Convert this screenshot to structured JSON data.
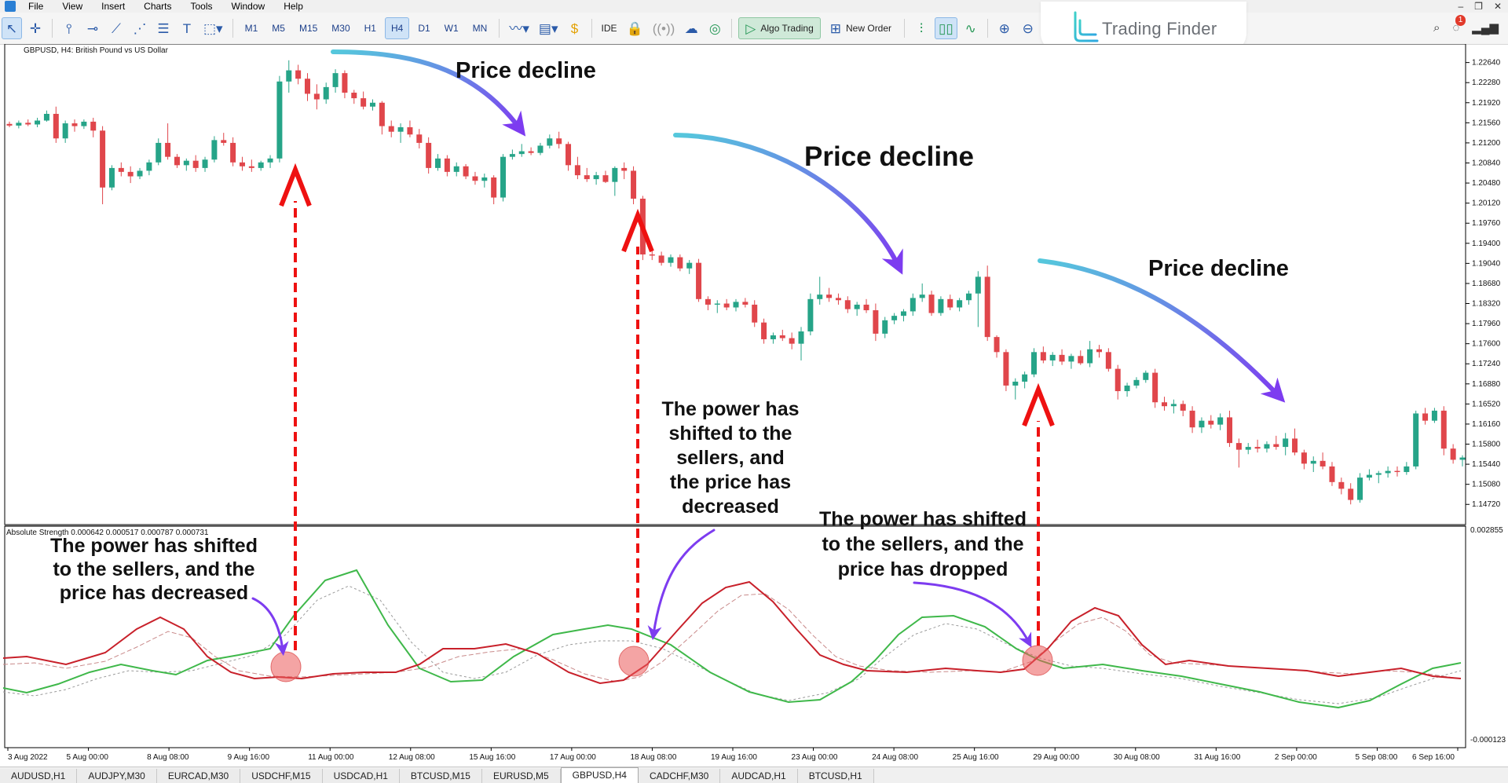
{
  "menu": {
    "items": [
      "File",
      "View",
      "Insert",
      "Charts",
      "Tools",
      "Window",
      "Help"
    ]
  },
  "toolbar": {
    "timeframes": [
      "M1",
      "M5",
      "M15",
      "M30",
      "H1",
      "H4",
      "D1",
      "W1",
      "MN"
    ],
    "active_timeframe": "H4",
    "ide_label": "IDE",
    "algo_trading_label": "Algo Trading",
    "new_order_label": "New Order"
  },
  "logo": {
    "text": "Trading Finder"
  },
  "notifications": {
    "count": "1"
  },
  "chart": {
    "symbol_label": "GBPUSD, H4:  British Pound vs US Dollar",
    "indicator_label": "Absolute Strength 0.000642 0.000517 0.000787 0.000731"
  },
  "annotations": {
    "decline_1": "Price decline",
    "decline_2": "Price decline",
    "decline_3": "Price decline",
    "note_1": [
      "The power has shifted",
      "to the sellers, and the",
      "price has decreased"
    ],
    "note_2": [
      "The power has",
      "shifted to the",
      "sellers, and",
      "the price has",
      "decreased"
    ],
    "note_3": [
      "The power has shifted",
      "to the sellers, and the",
      "price has dropped"
    ]
  },
  "colors": {
    "bull": "#26a488",
    "bear": "#e0464b",
    "strength_bull": "#3fb84a",
    "strength_bear": "#c8202a",
    "arrow_red": "#ee1111",
    "decline_arrow_start": "#55c8dc",
    "decline_arrow_end": "#7d3cf0"
  },
  "tabs": {
    "items": [
      "AUDUSD,H1",
      "AUDJPY,M30",
      "EURCAD,M30",
      "USDCHF,M15",
      "USDCAD,H1",
      "BTCUSD,M15",
      "EURUSD,M5",
      "GBPUSD,H4",
      "CADCHF,M30",
      "AUDCAD,H1",
      "BTCUSD,H1"
    ],
    "active": "GBPUSD,H4"
  },
  "chart_data": {
    "type": "candlestick",
    "price_axis_labels": [
      "1.22640",
      "1.22280",
      "1.21920",
      "1.21560",
      "1.21200",
      "1.20840",
      "1.20480",
      "1.20120",
      "1.19760",
      "1.19400",
      "1.19040",
      "1.18680",
      "1.18320",
      "1.17960",
      "1.17600",
      "1.17240",
      "1.16880",
      "1.16520",
      "1.16160",
      "1.15800",
      "1.15440",
      "1.15080",
      "1.14720"
    ],
    "time_axis_labels": [
      "3 Aug 2022",
      "5 Aug 00:00",
      "8 Aug 08:00",
      "9 Aug 16:00",
      "11 Aug 00:00",
      "12 Aug 08:00",
      "15 Aug 16:00",
      "17 Aug 00:00",
      "18 Aug 08:00",
      "19 Aug 16:00",
      "23 Aug 00:00",
      "24 Aug 08:00",
      "25 Aug 16:00",
      "29 Aug 00:00",
      "30 Aug 08:00",
      "31 Aug 16:00",
      "2 Sep 00:00",
      "5 Sep 08:00",
      "6 Sep 16:00"
    ],
    "indicator_axis_labels": [
      "0.002855",
      "-0.000123"
    ],
    "candles": [
      [
        1.2154,
        1.2158,
        1.2148,
        1.2151
      ],
      [
        1.2151,
        1.216,
        1.2146,
        1.2156
      ],
      [
        1.2156,
        1.2162,
        1.215,
        1.2153
      ],
      [
        1.2153,
        1.2165,
        1.2148,
        1.216
      ],
      [
        1.216,
        1.2178,
        1.2158,
        1.2172
      ],
      [
        1.2172,
        1.2185,
        1.212,
        1.2128
      ],
      [
        1.2128,
        1.216,
        1.212,
        1.2155
      ],
      [
        1.2155,
        1.2162,
        1.214,
        1.215
      ],
      [
        1.215,
        1.2162,
        1.2145,
        1.2158
      ],
      [
        1.2158,
        1.2165,
        1.213,
        1.2142
      ],
      [
        1.2142,
        1.215,
        1.201,
        1.204
      ],
      [
        1.204,
        1.208,
        1.2035,
        1.2075
      ],
      [
        1.2075,
        1.2085,
        1.206,
        1.2068
      ],
      [
        1.2068,
        1.2078,
        1.2048,
        1.206
      ],
      [
        1.206,
        1.2075,
        1.2055,
        1.207
      ],
      [
        1.207,
        1.209,
        1.2062,
        1.2085
      ],
      [
        1.2085,
        1.2128,
        1.208,
        1.212
      ],
      [
        1.212,
        1.2155,
        1.209,
        1.2095
      ],
      [
        1.2095,
        1.21,
        1.2075,
        1.208
      ],
      [
        1.208,
        1.2092,
        1.207,
        1.2088
      ],
      [
        1.2088,
        1.2098,
        1.2068,
        1.2075
      ],
      [
        1.2075,
        1.2095,
        1.2068,
        1.209
      ],
      [
        1.209,
        1.2132,
        1.2085,
        1.2125
      ],
      [
        1.2125,
        1.2138,
        1.2115,
        1.212
      ],
      [
        1.212,
        1.213,
        1.2078,
        1.2085
      ],
      [
        1.2085,
        1.2095,
        1.207,
        1.2078
      ],
      [
        1.2078,
        1.209,
        1.2068,
        1.2075
      ],
      [
        1.2075,
        1.2088,
        1.207,
        1.2085
      ],
      [
        1.2085,
        1.2098,
        1.2075,
        1.2092
      ],
      [
        1.2092,
        1.224,
        1.2085,
        1.223
      ],
      [
        1.223,
        1.2268,
        1.221,
        1.225
      ],
      [
        1.225,
        1.226,
        1.2225,
        1.2235
      ],
      [
        1.2235,
        1.2245,
        1.2195,
        1.2208
      ],
      [
        1.2208,
        1.2225,
        1.218,
        1.2198
      ],
      [
        1.2198,
        1.2228,
        1.219,
        1.222
      ],
      [
        1.222,
        1.2252,
        1.221,
        1.2245
      ],
      [
        1.2245,
        1.225,
        1.22,
        1.221
      ],
      [
        1.221,
        1.2215,
        1.219,
        1.22
      ],
      [
        1.22,
        1.2212,
        1.218,
        1.2185
      ],
      [
        1.2185,
        1.2198,
        1.2178,
        1.2192
      ],
      [
        1.2192,
        1.2195,
        1.2135,
        1.215
      ],
      [
        1.215,
        1.216,
        1.213,
        1.214
      ],
      [
        1.214,
        1.2155,
        1.212,
        1.2148
      ],
      [
        1.2148,
        1.216,
        1.213,
        1.2135
      ],
      [
        1.2135,
        1.2145,
        1.211,
        1.212
      ],
      [
        1.212,
        1.213,
        1.2065,
        1.2075
      ],
      [
        1.2075,
        1.21,
        1.207,
        1.2092
      ],
      [
        1.2092,
        1.2098,
        1.206,
        1.2068
      ],
      [
        1.2068,
        1.2085,
        1.206,
        1.2078
      ],
      [
        1.2078,
        1.2082,
        1.2055,
        1.206
      ],
      [
        1.206,
        1.2068,
        1.2045,
        1.2052
      ],
      [
        1.2052,
        1.2065,
        1.204,
        1.2058
      ],
      [
        1.2058,
        1.2062,
        1.201,
        1.2022
      ],
      [
        1.2022,
        1.21,
        1.2015,
        1.2095
      ],
      [
        1.2095,
        1.2108,
        1.209,
        1.21
      ],
      [
        1.21,
        1.2118,
        1.2095,
        1.2105
      ],
      [
        1.2105,
        1.2112,
        1.2098,
        1.2102
      ],
      [
        1.2102,
        1.212,
        1.2098,
        1.2115
      ],
      [
        1.2115,
        1.2135,
        1.211,
        1.2128
      ],
      [
        1.2128,
        1.214,
        1.211,
        1.2118
      ],
      [
        1.2118,
        1.2122,
        1.207,
        1.208
      ],
      [
        1.208,
        1.2095,
        1.2055,
        1.2062
      ],
      [
        1.2062,
        1.2075,
        1.205,
        1.2055
      ],
      [
        1.2055,
        1.2068,
        1.2045,
        1.2062
      ],
      [
        1.2062,
        1.207,
        1.2048,
        1.205
      ],
      [
        1.205,
        1.2078,
        1.2025,
        1.2075
      ],
      [
        1.2075,
        1.2085,
        1.2055,
        1.207
      ],
      [
        1.207,
        1.2078,
        1.201,
        1.202
      ],
      [
        1.202,
        1.2025,
        1.191,
        1.192
      ],
      [
        1.192,
        1.193,
        1.191,
        1.1918
      ],
      [
        1.1918,
        1.1925,
        1.19,
        1.1905
      ],
      [
        1.1905,
        1.192,
        1.1898,
        1.1915
      ],
      [
        1.1915,
        1.192,
        1.189,
        1.1895
      ],
      [
        1.1895,
        1.191,
        1.1885,
        1.1905
      ],
      [
        1.1905,
        1.1912,
        1.1835,
        1.184
      ],
      [
        1.184,
        1.1845,
        1.182,
        1.183
      ],
      [
        1.183,
        1.1838,
        1.1815,
        1.1832
      ],
      [
        1.1832,
        1.184,
        1.182,
        1.1825
      ],
      [
        1.1825,
        1.184,
        1.1818,
        1.1835
      ],
      [
        1.1835,
        1.1842,
        1.1825,
        1.183
      ],
      [
        1.183,
        1.1838,
        1.179,
        1.1798
      ],
      [
        1.1798,
        1.1805,
        1.176,
        1.1768
      ],
      [
        1.1768,
        1.178,
        1.176,
        1.1775
      ],
      [
        1.1775,
        1.1785,
        1.1765,
        1.177
      ],
      [
        1.177,
        1.178,
        1.175,
        1.176
      ],
      [
        1.176,
        1.179,
        1.173,
        1.1782
      ],
      [
        1.1782,
        1.185,
        1.1775,
        1.184
      ],
      [
        1.184,
        1.188,
        1.183,
        1.1848
      ],
      [
        1.1848,
        1.186,
        1.1835,
        1.1842
      ],
      [
        1.1842,
        1.185,
        1.183,
        1.1838
      ],
      [
        1.1838,
        1.1845,
        1.1815,
        1.1822
      ],
      [
        1.1822,
        1.1835,
        1.181,
        1.183
      ],
      [
        1.183,
        1.184,
        1.1815,
        1.182
      ],
      [
        1.182,
        1.1832,
        1.1765,
        1.1778
      ],
      [
        1.1778,
        1.1808,
        1.177,
        1.1802
      ],
      [
        1.1802,
        1.1815,
        1.1795,
        1.181
      ],
      [
        1.181,
        1.1822,
        1.18,
        1.1818
      ],
      [
        1.1818,
        1.185,
        1.181,
        1.1842
      ],
      [
        1.1842,
        1.1868,
        1.1835,
        1.1848
      ],
      [
        1.1848,
        1.1855,
        1.181,
        1.1815
      ],
      [
        1.1815,
        1.1845,
        1.181,
        1.184
      ],
      [
        1.184,
        1.1848,
        1.182,
        1.1825
      ],
      [
        1.1825,
        1.1842,
        1.1818,
        1.1838
      ],
      [
        1.1838,
        1.1855,
        1.183,
        1.185
      ],
      [
        1.185,
        1.189,
        1.179,
        1.188
      ],
      [
        1.188,
        1.19,
        1.1765,
        1.1772
      ],
      [
        1.1772,
        1.1775,
        1.1735,
        1.1745
      ],
      [
        1.1745,
        1.175,
        1.1675,
        1.1685
      ],
      [
        1.1685,
        1.1698,
        1.166,
        1.1692
      ],
      [
        1.1692,
        1.171,
        1.168,
        1.1705
      ],
      [
        1.1705,
        1.1752,
        1.17,
        1.1745
      ],
      [
        1.1745,
        1.1755,
        1.1725,
        1.173
      ],
      [
        1.173,
        1.1745,
        1.172,
        1.174
      ],
      [
        1.174,
        1.175,
        1.1722,
        1.1728
      ],
      [
        1.1728,
        1.1742,
        1.1715,
        1.1738
      ],
      [
        1.1738,
        1.1748,
        1.1722,
        1.1725
      ],
      [
        1.1725,
        1.1765,
        1.1718,
        1.175
      ],
      [
        1.175,
        1.1758,
        1.1735,
        1.1745
      ],
      [
        1.1745,
        1.1752,
        1.171,
        1.1715
      ],
      [
        1.1715,
        1.1722,
        1.166,
        1.1675
      ],
      [
        1.1675,
        1.169,
        1.1665,
        1.1685
      ],
      [
        1.1685,
        1.17,
        1.168,
        1.1695
      ],
      [
        1.1695,
        1.1712,
        1.169,
        1.1708
      ],
      [
        1.1708,
        1.1715,
        1.1645,
        1.1655
      ],
      [
        1.1655,
        1.1665,
        1.164,
        1.1648
      ],
      [
        1.1648,
        1.166,
        1.1635,
        1.1652
      ],
      [
        1.1652,
        1.1658,
        1.163,
        1.164
      ],
      [
        1.164,
        1.1648,
        1.16,
        1.161
      ],
      [
        1.161,
        1.1628,
        1.16,
        1.1622
      ],
      [
        1.1622,
        1.1632,
        1.1608,
        1.1615
      ],
      [
        1.1615,
        1.1635,
        1.1605,
        1.1628
      ],
      [
        1.1628,
        1.164,
        1.1575,
        1.1582
      ],
      [
        1.1582,
        1.159,
        1.1538,
        1.157
      ],
      [
        1.157,
        1.1582,
        1.1562,
        1.1575
      ],
      [
        1.1575,
        1.1588,
        1.1565,
        1.1572
      ],
      [
        1.1572,
        1.1585,
        1.1565,
        1.158
      ],
      [
        1.158,
        1.1595,
        1.157,
        1.1575
      ],
      [
        1.1575,
        1.16,
        1.156,
        1.159
      ],
      [
        1.159,
        1.1608,
        1.156,
        1.1565
      ],
      [
        1.1565,
        1.157,
        1.1535,
        1.1545
      ],
      [
        1.1545,
        1.1558,
        1.153,
        1.155
      ],
      [
        1.155,
        1.1565,
        1.1535,
        1.154
      ],
      [
        1.154,
        1.1548,
        1.1505,
        1.1512
      ],
      [
        1.1512,
        1.152,
        1.149,
        1.15
      ],
      [
        1.15,
        1.151,
        1.1472,
        1.148
      ],
      [
        1.148,
        1.1528,
        1.1475,
        1.152
      ],
      [
        1.152,
        1.1535,
        1.1515,
        1.1525
      ],
      [
        1.1525,
        1.1532,
        1.151,
        1.1528
      ],
      [
        1.1528,
        1.154,
        1.152,
        1.1532
      ],
      [
        1.1532,
        1.154,
        1.1522,
        1.153
      ],
      [
        1.153,
        1.1548,
        1.1525,
        1.154
      ],
      [
        1.154,
        1.164,
        1.1535,
        1.1635
      ],
      [
        1.1635,
        1.1645,
        1.1615,
        1.1622
      ],
      [
        1.1622,
        1.1645,
        1.1618,
        1.164
      ],
      [
        1.164,
        1.1648,
        1.156,
        1.1572
      ],
      [
        1.1572,
        1.158,
        1.1545,
        1.1552
      ],
      [
        1.1552,
        1.156,
        1.154,
        1.1556
      ]
    ],
    "ylim": [
      1.1447,
      1.2286
    ]
  }
}
